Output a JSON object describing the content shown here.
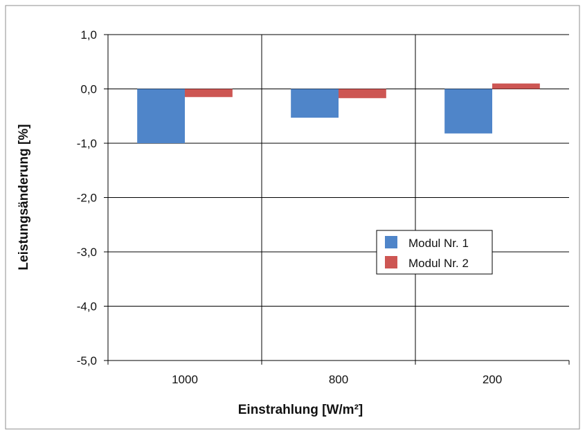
{
  "chart_data": {
    "type": "bar",
    "title": "",
    "xlabel": "Einstrahlung [W/m²]",
    "ylabel": "Leistungsänderung [%]",
    "categories": [
      "1000",
      "800",
      "200"
    ],
    "series": [
      {
        "name": "Modul Nr. 1",
        "values": [
          -1.0,
          -0.53,
          -0.82
        ]
      },
      {
        "name": "Modul Nr. 2",
        "values": [
          -0.15,
          -0.17,
          0.1
        ]
      }
    ],
    "ylim": [
      -5,
      1
    ],
    "y_ticks": [
      "1,0",
      "0,0",
      "-1,0",
      "-2,0",
      "-3,0",
      "-4,0",
      "-5,0"
    ],
    "grid": true,
    "legend_position": "center-right",
    "colors": {
      "series": [
        "#4f85c9",
        "#cd5653"
      ],
      "grid": "#000000",
      "axis": "#000000",
      "frame": "#8c8c8c"
    }
  }
}
